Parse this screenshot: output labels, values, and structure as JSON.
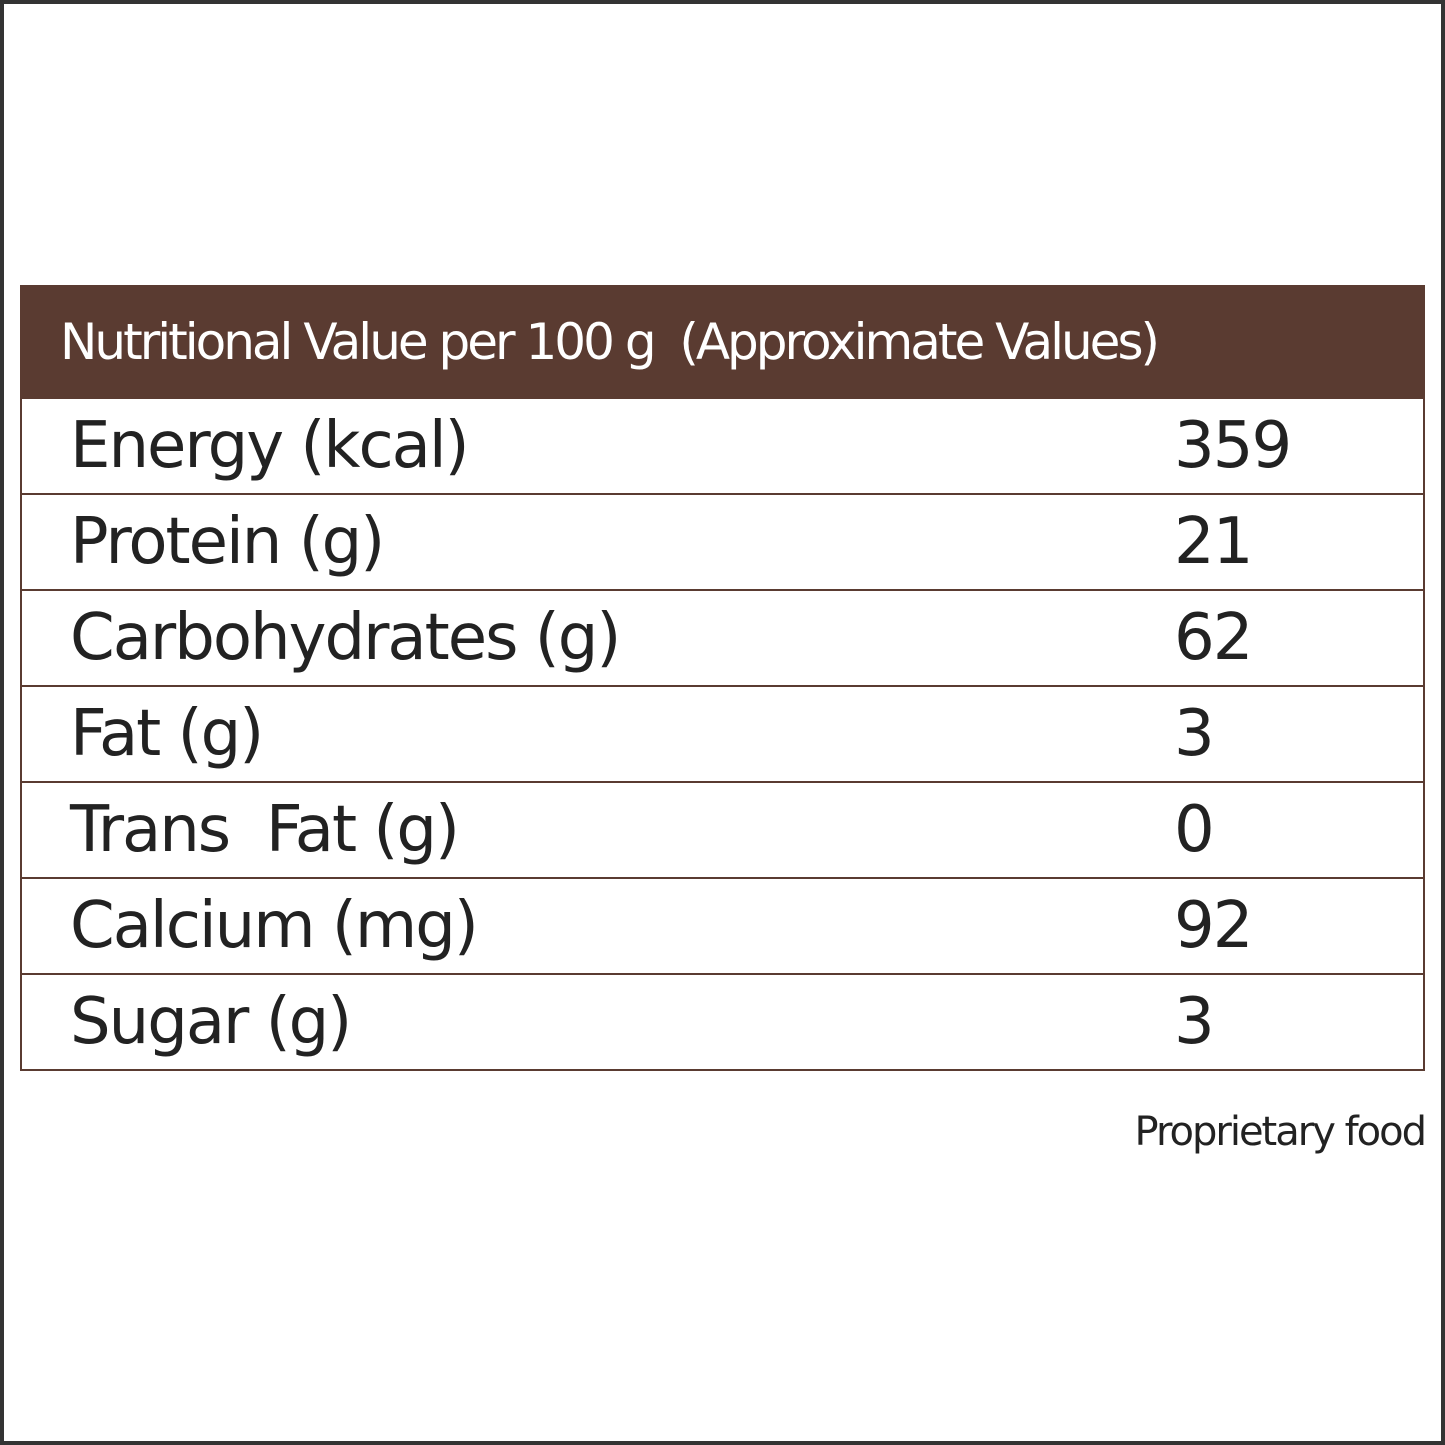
{
  "table": {
    "title": "Nutritional Value per 100 g  (Approximate Values)",
    "rows": [
      [
        "Energy (kcal)",
        "359"
      ],
      [
        "Protein (g)",
        "21"
      ],
      [
        "Carbohydrates (g)",
        "62"
      ],
      [
        "Fat (g)",
        "3"
      ],
      [
        "Trans  Fat (g)",
        "0"
      ],
      [
        "Calcium (mg)",
        "92"
      ],
      [
        "Sugar (g)",
        "3"
      ]
    ]
  },
  "footer": {
    "note": "Proprietary food"
  }
}
